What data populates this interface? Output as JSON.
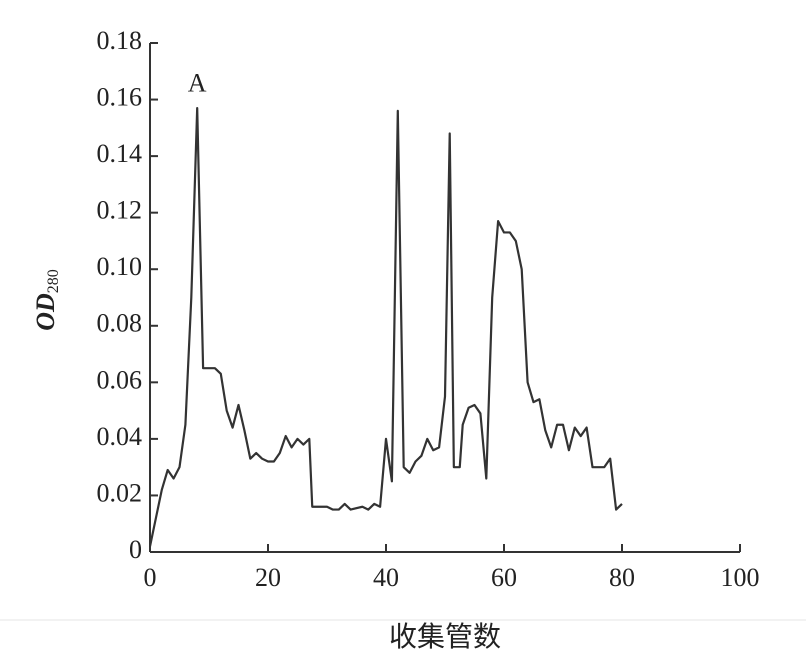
{
  "chart_data": {
    "type": "line",
    "x_label": "收集管数",
    "y_label": {
      "main": "OD",
      "sub": "280"
    },
    "annotations": [
      {
        "text": "A",
        "x": 8,
        "y": 0.165
      }
    ],
    "x": [
      0,
      1,
      2,
      3,
      4,
      5,
      6,
      7,
      8,
      9,
      10,
      11,
      12,
      13,
      14,
      15,
      16,
      17,
      18,
      19,
      20,
      21,
      22,
      23,
      24,
      25,
      26,
      27,
      27.5,
      28,
      30,
      31,
      32,
      33,
      34,
      36,
      37,
      38,
      39,
      40,
      41,
      42,
      43,
      44,
      45,
      46,
      47,
      48,
      49,
      50,
      50.8,
      51.5,
      52.5,
      53,
      54,
      55,
      56,
      57,
      58,
      59,
      60,
      61,
      62,
      63,
      64,
      65,
      66,
      67,
      68,
      69,
      70,
      71,
      72,
      73,
      74,
      75,
      76,
      77,
      78,
      79,
      80
    ],
    "series": [
      {
        "color": "#333333",
        "values": [
          0.002,
          0.012,
          0.022,
          0.029,
          0.026,
          0.03,
          0.045,
          0.09,
          0.157,
          0.065,
          0.065,
          0.065,
          0.063,
          0.05,
          0.044,
          0.052,
          0.043,
          0.033,
          0.035,
          0.033,
          0.032,
          0.032,
          0.035,
          0.041,
          0.037,
          0.04,
          0.038,
          0.04,
          0.016,
          0.016,
          0.016,
          0.015,
          0.015,
          0.017,
          0.015,
          0.016,
          0.015,
          0.017,
          0.016,
          0.04,
          0.025,
          0.156,
          0.03,
          0.028,
          0.032,
          0.034,
          0.04,
          0.036,
          0.037,
          0.055,
          0.148,
          0.03,
          0.03,
          0.045,
          0.051,
          0.052,
          0.049,
          0.026,
          0.09,
          0.117,
          0.113,
          0.113,
          0.11,
          0.1,
          0.06,
          0.053,
          0.054,
          0.043,
          0.037,
          0.045,
          0.045,
          0.036,
          0.044,
          0.041,
          0.044,
          0.03,
          0.03,
          0.03,
          0.033,
          0.015,
          0.017
        ]
      }
    ],
    "xlim": [
      0,
      100
    ],
    "xticks": [
      0,
      20,
      40,
      60,
      80,
      100
    ],
    "ylim": [
      0,
      0.18
    ],
    "yticks": [
      0,
      0.02,
      0.04,
      0.06,
      0.08,
      {
        "value": 0.1,
        "label": "0.10"
      },
      0.12,
      0.14,
      0.16,
      0.18
    ]
  }
}
